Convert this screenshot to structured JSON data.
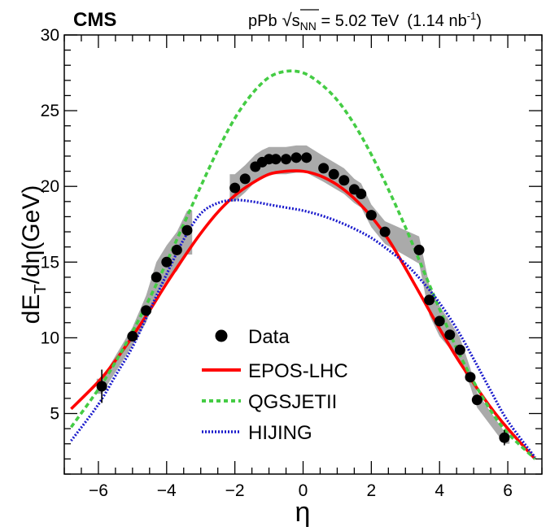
{
  "header": {
    "experiment": "CMS",
    "system": "pPb",
    "sqrt_symbol": "√",
    "energy_var": "s",
    "energy_sub": "NN",
    "energy_value": " = 5.02 TeV",
    "lumi_open": "(1.14 nb",
    "lumi_exp": "-1",
    "lumi_close": ")"
  },
  "chart_data": {
    "type": "line",
    "xlabel": "η",
    "ylabel": "dE_T/dη(GeV)",
    "ylabel_parts": {
      "d": "dE",
      "sub": "T",
      "rest": "/dη(GeV)"
    },
    "xlim": [
      -7.0,
      7.0
    ],
    "ylim": [
      1.0,
      30.0
    ],
    "x_ticks": [
      -6,
      -4,
      -2,
      0,
      2,
      4,
      6
    ],
    "x_tick_labels": [
      "−6",
      "−4",
      "−2",
      "0",
      "2",
      "4",
      "6"
    ],
    "y_ticks": [
      5,
      10,
      15,
      20,
      25,
      30
    ],
    "y_tick_labels": [
      "5",
      "10",
      "15",
      "20",
      "25",
      "30"
    ],
    "grid": false,
    "legend_position": "center-bottom",
    "series": [
      {
        "name": "Data",
        "kind": "points",
        "color": "#000000",
        "x": [
          -5.9,
          -5.0,
          -4.6,
          -4.3,
          -4.0,
          -3.7,
          -3.4,
          -2.0,
          -1.7,
          -1.4,
          -1.2,
          -1.0,
          -0.8,
          -0.5,
          -0.2,
          0.1,
          0.6,
          0.9,
          1.2,
          1.5,
          1.7,
          2.0,
          2.4,
          3.4,
          3.7,
          4.0,
          4.3,
          4.6,
          4.9,
          5.1,
          5.9
        ],
        "y": [
          6.8,
          10.1,
          11.8,
          14.0,
          15.0,
          15.8,
          17.1,
          19.9,
          20.5,
          21.3,
          21.6,
          21.8,
          21.8,
          21.8,
          21.9,
          21.9,
          21.2,
          20.8,
          20.4,
          19.8,
          19.5,
          18.1,
          17.0,
          15.8,
          12.5,
          11.1,
          10.2,
          9.2,
          7.4,
          5.9,
          3.4
        ],
        "sys_band": [
          {
            "x": -5.9,
            "lo": 6.3,
            "hi": 7.3
          },
          {
            "x": -5.0,
            "lo": 9.5,
            "hi": 10.7
          },
          {
            "x": -4.6,
            "lo": 11.0,
            "hi": 12.8
          },
          {
            "x": -4.3,
            "lo": 12.8,
            "hi": 15.0
          },
          {
            "x": -4.0,
            "lo": 13.8,
            "hi": 16.1
          },
          {
            "x": -3.7,
            "lo": 14.4,
            "hi": 17.0
          },
          {
            "x": -3.4,
            "lo": 15.5,
            "hi": 18.4
          },
          {
            "x": -2.0,
            "lo": 19.0,
            "hi": 20.8
          },
          {
            "x": -1.7,
            "lo": 19.6,
            "hi": 21.4
          },
          {
            "x": -1.4,
            "lo": 20.3,
            "hi": 22.1
          },
          {
            "x": -1.2,
            "lo": 20.6,
            "hi": 22.4
          },
          {
            "x": -1.0,
            "lo": 20.8,
            "hi": 22.6
          },
          {
            "x": -0.8,
            "lo": 20.8,
            "hi": 22.6
          },
          {
            "x": -0.5,
            "lo": 20.8,
            "hi": 22.6
          },
          {
            "x": -0.2,
            "lo": 20.9,
            "hi": 22.7
          },
          {
            "x": 0.1,
            "lo": 20.9,
            "hi": 22.7
          },
          {
            "x": 0.6,
            "lo": 20.3,
            "hi": 22.0
          },
          {
            "x": 0.9,
            "lo": 19.9,
            "hi": 21.6
          },
          {
            "x": 1.2,
            "lo": 19.5,
            "hi": 21.2
          },
          {
            "x": 1.5,
            "lo": 18.9,
            "hi": 20.5
          },
          {
            "x": 1.7,
            "lo": 18.6,
            "hi": 20.2
          },
          {
            "x": 2.0,
            "lo": 17.3,
            "hi": 18.8
          },
          {
            "x": 2.4,
            "lo": 16.2,
            "hi": 17.7
          },
          {
            "x": 3.4,
            "lo": 14.9,
            "hi": 16.7
          },
          {
            "x": 3.7,
            "lo": 11.5,
            "hi": 13.5
          },
          {
            "x": 4.0,
            "lo": 10.1,
            "hi": 12.1
          },
          {
            "x": 4.3,
            "lo": 9.3,
            "hi": 11.1
          },
          {
            "x": 4.6,
            "lo": 8.4,
            "hi": 10.0
          },
          {
            "x": 4.9,
            "lo": 6.8,
            "hi": 8.0
          },
          {
            "x": 5.1,
            "lo": 5.4,
            "hi": 6.4
          },
          {
            "x": 5.9,
            "lo": 3.0,
            "hi": 3.8
          }
        ],
        "stat_err": [
          {
            "x": -5.9,
            "lo": 5.7,
            "hi": 7.9
          },
          {
            "x": 5.9,
            "lo": 2.9,
            "hi": 3.9
          }
        ]
      },
      {
        "name": "EPOS-LHC",
        "kind": "line",
        "color": "#ff0000",
        "dash": "solid",
        "x": [
          -6.8,
          -6.0,
          -5.5,
          -5.0,
          -4.5,
          -4.0,
          -3.5,
          -3.0,
          -2.5,
          -2.0,
          -1.5,
          -1.0,
          -0.5,
          0.0,
          0.5,
          1.0,
          1.5,
          2.0,
          2.5,
          3.0,
          3.5,
          4.0,
          4.5,
          5.0,
          5.5,
          6.0,
          6.8
        ],
        "y": [
          5.3,
          7.1,
          8.5,
          10.1,
          11.8,
          13.6,
          15.3,
          16.9,
          18.3,
          19.4,
          20.2,
          20.8,
          21.0,
          21.0,
          20.7,
          20.1,
          19.2,
          18.0,
          16.5,
          14.6,
          12.6,
          10.6,
          8.7,
          7.0,
          5.4,
          4.0,
          2.0
        ]
      },
      {
        "name": "QGSJETII",
        "kind": "line",
        "color": "#44cc44",
        "dash": "dashed",
        "x": [
          -6.8,
          -6.0,
          -5.5,
          -5.0,
          -4.5,
          -4.0,
          -3.5,
          -3.0,
          -2.5,
          -2.0,
          -1.5,
          -1.0,
          -0.5,
          0.0,
          0.5,
          1.0,
          1.5,
          2.0,
          2.5,
          3.0,
          3.5,
          4.0,
          4.5,
          5.0,
          5.5,
          6.0,
          6.8
        ],
        "y": [
          4.1,
          6.6,
          8.4,
          10.4,
          12.6,
          15.0,
          17.5,
          20.0,
          22.4,
          24.5,
          26.1,
          27.2,
          27.6,
          27.5,
          26.8,
          25.7,
          24.1,
          22.1,
          19.8,
          17.3,
          14.6,
          11.9,
          9.3,
          7.1,
          5.2,
          3.7,
          2.0
        ]
      },
      {
        "name": "HIJING",
        "kind": "line",
        "color": "#1a1acc",
        "dash": "dotted",
        "x": [
          -6.8,
          -6.0,
          -5.5,
          -5.0,
          -4.5,
          -4.0,
          -3.5,
          -3.0,
          -2.5,
          -2.0,
          -1.5,
          -1.0,
          -0.5,
          0.0,
          0.5,
          1.0,
          1.5,
          2.0,
          2.5,
          3.0,
          3.5,
          4.0,
          4.5,
          5.0,
          5.5,
          6.0,
          6.8
        ],
        "y": [
          3.2,
          5.6,
          7.5,
          9.4,
          11.8,
          14.2,
          16.5,
          18.2,
          18.9,
          19.1,
          19.0,
          18.8,
          18.6,
          18.4,
          18.1,
          17.7,
          17.2,
          16.6,
          15.8,
          14.9,
          13.7,
          12.3,
          10.6,
          8.6,
          6.5,
          4.5,
          2.1
        ]
      }
    ]
  }
}
